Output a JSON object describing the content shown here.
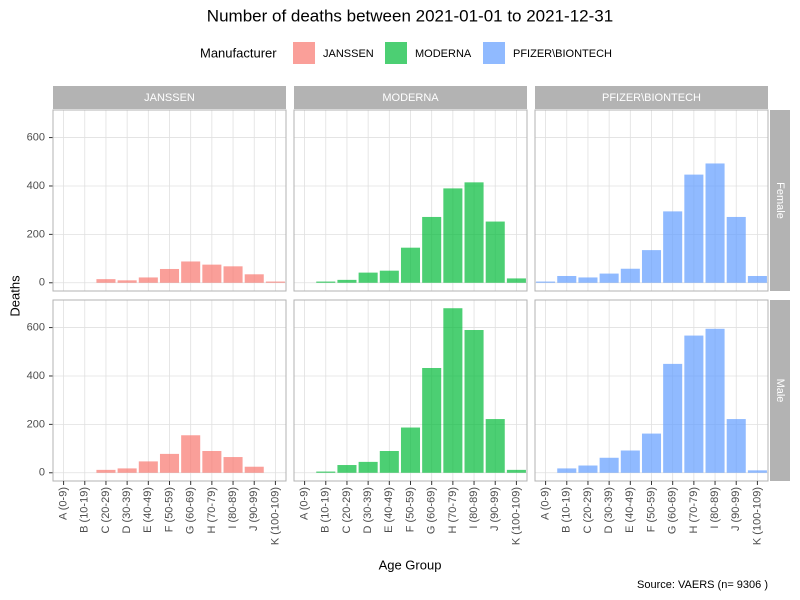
{
  "chart_data": {
    "type": "bar",
    "title": "Number of deaths between 2021-01-01 to 2021-12-31",
    "legend_title": "Manufacturer",
    "x_label": "Age Group",
    "y_label": "Deaths",
    "caption": "Source: VAERS (n= 9306 )",
    "categories": [
      "A (0-9)",
      "B (10-19)",
      "C (20-29)",
      "D (30-39)",
      "E (40-49)",
      "F (50-59)",
      "G (60-69)",
      "H (70-79)",
      "I (80-89)",
      "J (90-99)",
      "K (100-109)"
    ],
    "facet_rows": [
      "Female",
      "Male"
    ],
    "series": [
      {
        "name": "JANSSEN",
        "color": "#F8766D",
        "values": [
          [
            0,
            0,
            15,
            10,
            22,
            57,
            88,
            75,
            68,
            35,
            5
          ],
          [
            0,
            0,
            12,
            18,
            47,
            78,
            155,
            90,
            65,
            25,
            0
          ]
        ]
      },
      {
        "name": "MODERNA",
        "color": "#00BA38",
        "values": [
          [
            0,
            5,
            12,
            42,
            50,
            145,
            272,
            390,
            415,
            253,
            18
          ],
          [
            0,
            5,
            32,
            45,
            90,
            187,
            433,
            680,
            590,
            222,
            12
          ]
        ]
      },
      {
        "name": "PFIZER\\BIONTECH",
        "color": "#619CFF",
        "values": [
          [
            5,
            28,
            22,
            38,
            58,
            135,
            295,
            447,
            493,
            272,
            28
          ],
          [
            0,
            18,
            30,
            62,
            92,
            162,
            450,
            567,
            595,
            222,
            10
          ]
        ]
      }
    ],
    "ylim": [
      -34,
      714
    ],
    "yticks": [
      0,
      200,
      400,
      600
    ],
    "grid": true
  }
}
